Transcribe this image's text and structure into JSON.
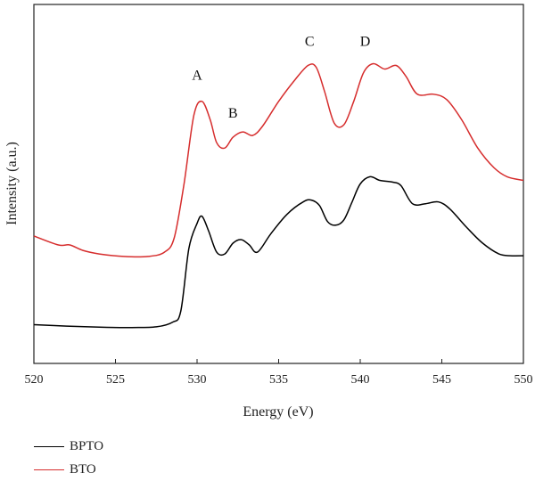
{
  "chart_data": {
    "type": "line",
    "xlabel": "Energy (eV)",
    "ylabel": "Intensity (a.u.)",
    "xlim": [
      520,
      550
    ],
    "x_ticks": [
      520,
      525,
      530,
      535,
      540,
      545,
      550
    ],
    "ylim": [
      0,
      10
    ],
    "y_ticks_shown": false,
    "grid": false,
    "legend_position": "bottom-left",
    "series": [
      {
        "name": "BPTO",
        "color": "#000000",
        "points": [
          [
            520,
            1.08
          ],
          [
            522,
            1.04
          ],
          [
            524,
            1.01
          ],
          [
            526,
            1.0
          ],
          [
            527.5,
            1.02
          ],
          [
            528.5,
            1.15
          ],
          [
            529.0,
            1.45
          ],
          [
            529.5,
            3.2
          ],
          [
            530.0,
            3.9
          ],
          [
            530.3,
            4.1
          ],
          [
            530.7,
            3.7
          ],
          [
            531.2,
            3.1
          ],
          [
            531.7,
            3.05
          ],
          [
            532.2,
            3.35
          ],
          [
            532.7,
            3.45
          ],
          [
            533.2,
            3.3
          ],
          [
            533.7,
            3.1
          ],
          [
            534.5,
            3.6
          ],
          [
            535.5,
            4.15
          ],
          [
            536.5,
            4.5
          ],
          [
            537.0,
            4.55
          ],
          [
            537.5,
            4.4
          ],
          [
            538.0,
            3.95
          ],
          [
            538.5,
            3.85
          ],
          [
            539.0,
            4.0
          ],
          [
            539.5,
            4.5
          ],
          [
            540.0,
            5.0
          ],
          [
            540.6,
            5.2
          ],
          [
            541.2,
            5.1
          ],
          [
            542.0,
            5.05
          ],
          [
            542.5,
            4.95
          ],
          [
            543.2,
            4.45
          ],
          [
            544.0,
            4.45
          ],
          [
            544.8,
            4.5
          ],
          [
            545.5,
            4.3
          ],
          [
            546.5,
            3.8
          ],
          [
            547.5,
            3.35
          ],
          [
            548.5,
            3.05
          ],
          [
            549.2,
            3.0
          ],
          [
            550,
            3.0
          ]
        ]
      },
      {
        "name": "BTO",
        "color": "#d62d2d",
        "points": [
          [
            520,
            3.55
          ],
          [
            521.5,
            3.3
          ],
          [
            522.2,
            3.3
          ],
          [
            523,
            3.15
          ],
          [
            524,
            3.05
          ],
          [
            525.5,
            2.98
          ],
          [
            527,
            2.98
          ],
          [
            528,
            3.1
          ],
          [
            528.6,
            3.5
          ],
          [
            529.2,
            5.0
          ],
          [
            529.8,
            6.9
          ],
          [
            530.3,
            7.3
          ],
          [
            530.8,
            6.8
          ],
          [
            531.2,
            6.15
          ],
          [
            531.7,
            6.0
          ],
          [
            532.2,
            6.3
          ],
          [
            532.8,
            6.45
          ],
          [
            533.4,
            6.35
          ],
          [
            534.0,
            6.6
          ],
          [
            535.0,
            7.3
          ],
          [
            536.0,
            7.9
          ],
          [
            536.8,
            8.3
          ],
          [
            537.3,
            8.25
          ],
          [
            537.8,
            7.6
          ],
          [
            538.4,
            6.7
          ],
          [
            539.0,
            6.65
          ],
          [
            539.6,
            7.3
          ],
          [
            540.2,
            8.1
          ],
          [
            540.8,
            8.35
          ],
          [
            541.5,
            8.2
          ],
          [
            542.2,
            8.3
          ],
          [
            542.8,
            8.0
          ],
          [
            543.5,
            7.5
          ],
          [
            544.5,
            7.5
          ],
          [
            545.3,
            7.35
          ],
          [
            546.2,
            6.8
          ],
          [
            547.2,
            6.0
          ],
          [
            548.2,
            5.45
          ],
          [
            549.0,
            5.2
          ],
          [
            550,
            5.1
          ]
        ]
      }
    ],
    "annotations": [
      {
        "text": "A",
        "x": 530.0,
        "y": 7.9
      },
      {
        "text": "B",
        "x": 532.2,
        "y": 6.85
      },
      {
        "text": "C",
        "x": 536.9,
        "y": 8.85
      },
      {
        "text": "D",
        "x": 540.3,
        "y": 8.85
      }
    ]
  }
}
